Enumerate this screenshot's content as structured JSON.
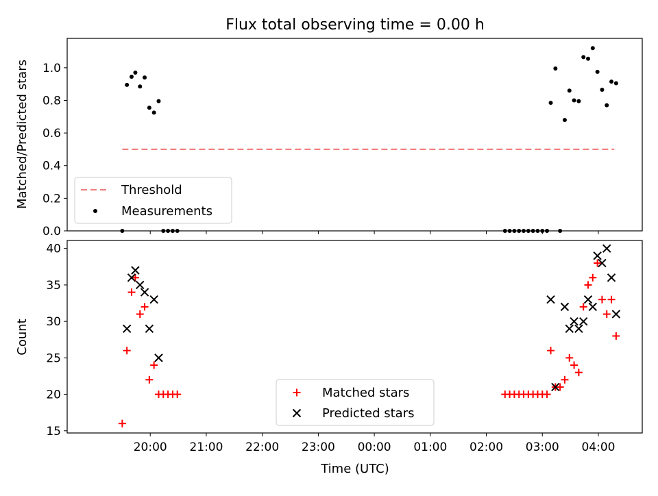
{
  "chart_data": [
    {
      "type": "scatter",
      "title": "Flux total observing time = 0.00 h",
      "xlabel": "",
      "ylabel": "Matched/Predicted stars",
      "ylim": [
        0,
        1.18
      ],
      "yticks": [
        "0.0",
        "0.2",
        "0.4",
        "0.6",
        "0.8",
        "1.0"
      ],
      "ytick_values": [
        0,
        0.2,
        0.4,
        0.6,
        0.8,
        1.0
      ],
      "xtick_labels_shown": false,
      "threshold": {
        "name": "Threshold",
        "value": 0.5,
        "x_start": "19:30",
        "x_end": "04:17",
        "color": "#f08080",
        "style": "dashed"
      },
      "series": [
        {
          "name": "Measurements",
          "color": "#000000",
          "marker": "dot",
          "points": [
            [
              "19:30",
              0.0
            ],
            [
              "19:35",
              0.895
            ],
            [
              "19:40",
              0.945
            ],
            [
              "19:44",
              0.97
            ],
            [
              "19:49",
              0.885
            ],
            [
              "19:54",
              0.94
            ],
            [
              "19:59",
              0.755
            ],
            [
              "20:04",
              0.725
            ],
            [
              "20:09",
              0.795
            ],
            [
              "20:14",
              0.0
            ],
            [
              "20:19",
              0.0
            ],
            [
              "20:24",
              0.0
            ],
            [
              "20:29",
              0.0
            ],
            [
              "02:20",
              0.0
            ],
            [
              "02:25",
              0.0
            ],
            [
              "02:30",
              0.0
            ],
            [
              "02:35",
              0.0
            ],
            [
              "02:40",
              0.0
            ],
            [
              "02:45",
              0.0
            ],
            [
              "02:50",
              0.0
            ],
            [
              "02:55",
              0.0
            ],
            [
              "03:00",
              0.0
            ],
            [
              "03:05",
              0.0
            ],
            [
              "03:09",
              0.785
            ],
            [
              "03:14",
              0.995
            ],
            [
              "03:19",
              0.0
            ],
            [
              "03:24",
              0.68
            ],
            [
              "03:29",
              0.86
            ],
            [
              "03:34",
              0.8
            ],
            [
              "03:39",
              0.795
            ],
            [
              "03:44",
              1.065
            ],
            [
              "03:49",
              1.055
            ],
            [
              "03:54",
              1.12
            ],
            [
              "03:59",
              0.975
            ],
            [
              "04:04",
              0.865
            ],
            [
              "04:09",
              0.77
            ],
            [
              "04:14",
              0.915
            ],
            [
              "04:19",
              0.905
            ]
          ]
        }
      ],
      "legend": {
        "position": "lower-left",
        "entries": [
          "Threshold",
          "Measurements"
        ]
      }
    },
    {
      "type": "scatter",
      "title": "",
      "xlabel": "Time (UTC)",
      "ylabel": "Count",
      "ylim": [
        14.7,
        41.1
      ],
      "yticks": [
        "15",
        "20",
        "25",
        "30",
        "35",
        "40"
      ],
      "ytick_values": [
        15,
        20,
        25,
        30,
        35,
        40
      ],
      "xticks": [
        "20:00",
        "21:00",
        "22:00",
        "23:00",
        "00:00",
        "01:00",
        "02:00",
        "03:00",
        "04:00"
      ],
      "series": [
        {
          "name": "Matched stars",
          "color": "#ff0000",
          "marker": "plus",
          "points": [
            [
              "19:30",
              16
            ],
            [
              "19:35",
              26
            ],
            [
              "19:40",
              34
            ],
            [
              "19:44",
              36
            ],
            [
              "19:49",
              31
            ],
            [
              "19:54",
              32
            ],
            [
              "19:59",
              22
            ],
            [
              "20:04",
              24
            ],
            [
              "20:09",
              20
            ],
            [
              "20:14",
              20
            ],
            [
              "20:19",
              20
            ],
            [
              "20:24",
              20
            ],
            [
              "20:29",
              20
            ],
            [
              "02:20",
              20
            ],
            [
              "02:25",
              20
            ],
            [
              "02:30",
              20
            ],
            [
              "02:35",
              20
            ],
            [
              "02:40",
              20
            ],
            [
              "02:45",
              20
            ],
            [
              "02:50",
              20
            ],
            [
              "02:55",
              20
            ],
            [
              "03:00",
              20
            ],
            [
              "03:05",
              20
            ],
            [
              "03:09",
              26
            ],
            [
              "03:14",
              21
            ],
            [
              "03:19",
              21
            ],
            [
              "03:24",
              22
            ],
            [
              "03:29",
              25
            ],
            [
              "03:34",
              24
            ],
            [
              "03:39",
              23
            ],
            [
              "03:44",
              32
            ],
            [
              "03:49",
              35
            ],
            [
              "03:54",
              36
            ],
            [
              "03:59",
              38
            ],
            [
              "04:04",
              33
            ],
            [
              "04:09",
              31
            ],
            [
              "04:14",
              33
            ],
            [
              "04:19",
              28
            ]
          ]
        },
        {
          "name": "Predicted stars",
          "color": "#000000",
          "marker": "x",
          "points": [
            [
              "19:35",
              29
            ],
            [
              "19:40",
              36
            ],
            [
              "19:44",
              37
            ],
            [
              "19:49",
              35
            ],
            [
              "19:54",
              34
            ],
            [
              "19:59",
              29
            ],
            [
              "20:04",
              33
            ],
            [
              "20:09",
              25
            ],
            [
              "03:09",
              33
            ],
            [
              "03:14",
              21
            ],
            [
              "03:24",
              32
            ],
            [
              "03:29",
              29
            ],
            [
              "03:34",
              30
            ],
            [
              "03:39",
              29
            ],
            [
              "03:44",
              30
            ],
            [
              "03:49",
              33
            ],
            [
              "03:54",
              32
            ],
            [
              "03:59",
              39
            ],
            [
              "04:04",
              38
            ],
            [
              "04:09",
              40
            ],
            [
              "04:14",
              36
            ],
            [
              "04:19",
              31
            ]
          ]
        }
      ],
      "legend": {
        "position": "lower-center",
        "entries": [
          "Matched stars",
          "Predicted stars"
        ]
      }
    }
  ]
}
